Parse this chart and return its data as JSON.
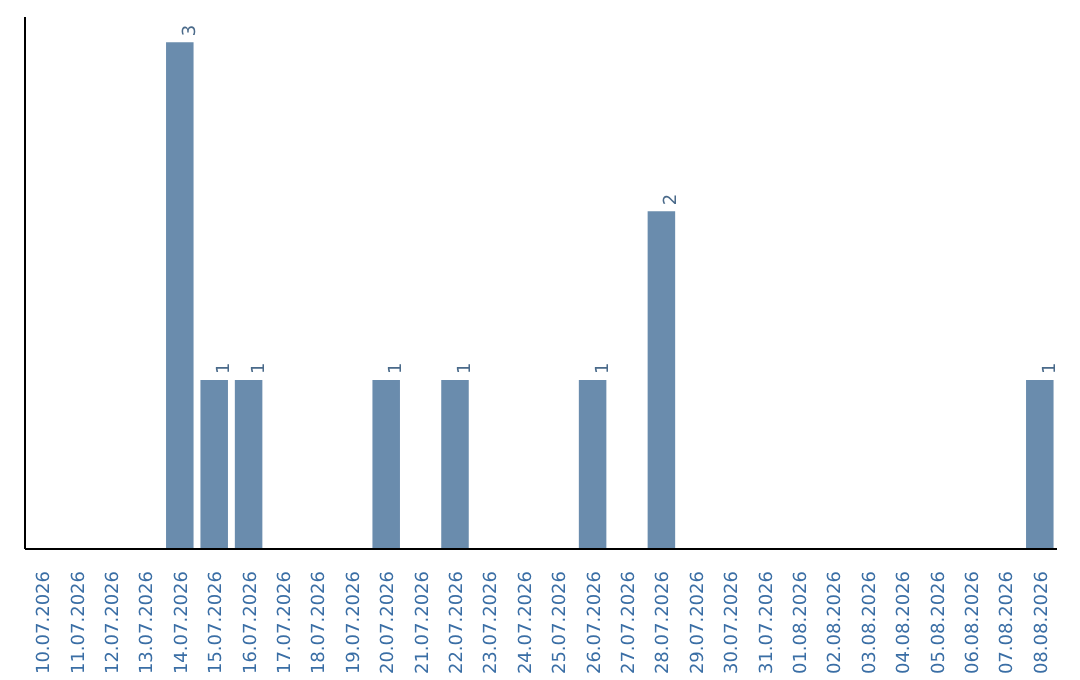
{
  "chart_data": {
    "type": "bar",
    "categories": [
      "10.07.2026",
      "11.07.2026",
      "12.07.2026",
      "13.07.2026",
      "14.07.2026",
      "15.07.2026",
      "16.07.2026",
      "17.07.2026",
      "18.07.2026",
      "19.07.2026",
      "20.07.2026",
      "21.07.2026",
      "22.07.2026",
      "23.07.2026",
      "24.07.2026",
      "25.07.2026",
      "26.07.2026",
      "27.07.2026",
      "28.07.2026",
      "29.07.2026",
      "30.07.2026",
      "31.07.2026",
      "01.08.2026",
      "02.08.2026",
      "03.08.2026",
      "04.08.2026",
      "05.08.2026",
      "06.08.2026",
      "07.08.2026",
      "08.08.2026"
    ],
    "values": [
      0,
      0,
      0,
      0,
      3,
      1,
      1,
      0,
      0,
      0,
      1,
      0,
      1,
      0,
      0,
      0,
      1,
      0,
      2,
      0,
      0,
      0,
      0,
      0,
      0,
      0,
      0,
      0,
      0,
      1
    ],
    "value_labels": [
      null,
      null,
      null,
      null,
      "3",
      "1",
      "1",
      null,
      null,
      null,
      "1",
      null,
      "1",
      null,
      null,
      null,
      "1",
      null,
      "2",
      null,
      null,
      null,
      null,
      null,
      null,
      null,
      null,
      null,
      null,
      "1"
    ],
    "color": "#6a8cad",
    "grid": false,
    "tick_labels": "x"
  }
}
